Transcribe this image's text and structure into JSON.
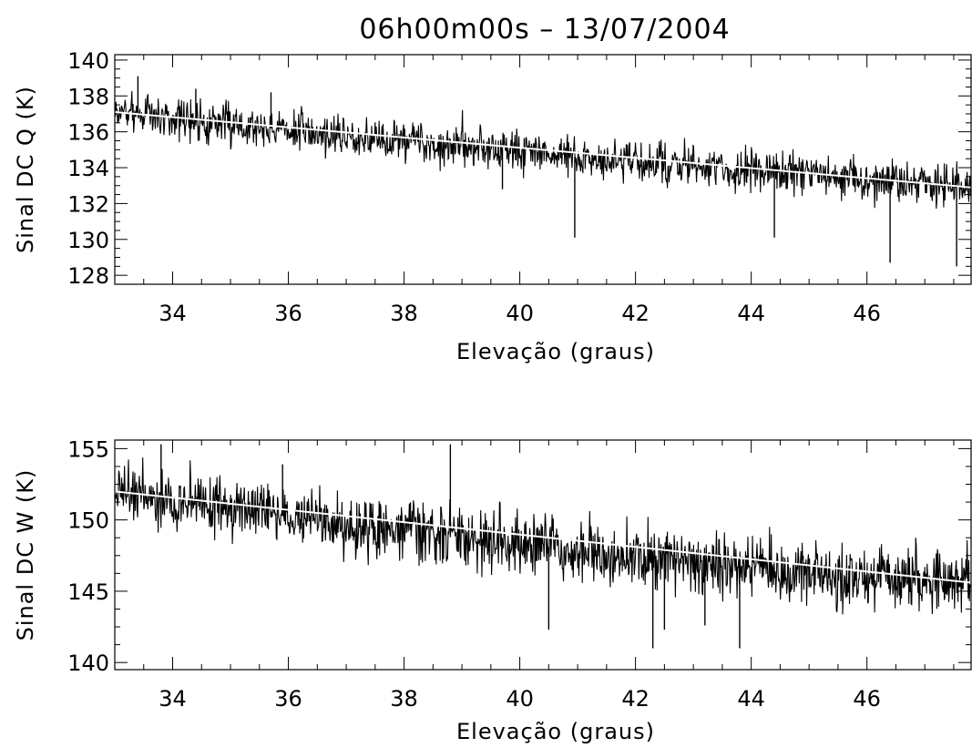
{
  "title": "06h00m00s – 13/07/2004",
  "chart_data": [
    {
      "type": "line",
      "xlabel": "Elevação (graus)",
      "ylabel": "Sinal DC Q (K)",
      "xlim": [
        33.0,
        47.8
      ],
      "ylim": [
        127.5,
        140.3
      ],
      "xticks": [
        34,
        36,
        38,
        40,
        42,
        44,
        46
      ],
      "xtick_labels": [
        "34",
        "36",
        "38",
        "40",
        "42",
        "44",
        "46"
      ],
      "yticks": [
        128,
        130,
        132,
        134,
        136,
        138,
        140
      ],
      "ytick_labels": [
        "128",
        "130",
        "132",
        "134",
        "136",
        "138",
        "140"
      ],
      "grid": false,
      "series": [
        {
          "color": "#000000",
          "style": "noisy signal",
          "x": [
            33.0,
            34.0,
            35.0,
            36.0,
            37.0,
            38.0,
            39.0,
            40.0,
            41.0,
            42.0,
            43.0,
            44.0,
            45.0,
            46.0,
            47.0,
            47.8
          ],
          "y": [
            137.1,
            136.8,
            136.4,
            136.1,
            135.8,
            135.5,
            135.2,
            134.9,
            134.6,
            134.3,
            134.0,
            133.8,
            133.6,
            133.3,
            133.1,
            132.9
          ],
          "spikes": [
            {
              "x": 33.4,
              "y": 139.1
            },
            {
              "x": 34.4,
              "y": 138.4
            },
            {
              "x": 35.7,
              "y": 138.2
            },
            {
              "x": 39.7,
              "y": 132.8
            },
            {
              "x": 40.95,
              "y": 130.1
            },
            {
              "x": 44.4,
              "y": 130.1
            },
            {
              "x": 46.4,
              "y": 128.7
            },
            {
              "x": 47.55,
              "y": 128.5
            }
          ]
        },
        {
          "color": "#ffffff",
          "style": "fit",
          "x": [
            33.0,
            47.8
          ],
          "y": [
            137.1,
            132.9
          ]
        }
      ]
    },
    {
      "type": "line",
      "xlabel": "Elevação (graus)",
      "ylabel": "Sinal DC W (K)",
      "xlim": [
        33.0,
        47.8
      ],
      "ylim": [
        139.5,
        155.6
      ],
      "xticks": [
        34,
        36,
        38,
        40,
        42,
        44,
        46
      ],
      "xtick_labels": [
        "34",
        "36",
        "38",
        "40",
        "42",
        "44",
        "46"
      ],
      "yticks": [
        140,
        145,
        150,
        155
      ],
      "ytick_labels": [
        "140",
        "145",
        "150",
        "155"
      ],
      "grid": false,
      "series": [
        {
          "color": "#000000",
          "style": "noisy signal",
          "x": [
            33.0,
            34.0,
            35.0,
            36.0,
            37.0,
            38.0,
            39.0,
            40.0,
            41.0,
            42.0,
            43.0,
            44.0,
            45.0,
            46.0,
            47.0,
            47.8
          ],
          "y": [
            152.0,
            151.4,
            150.8,
            150.2,
            149.7,
            149.2,
            148.7,
            148.3,
            147.9,
            147.5,
            147.1,
            146.7,
            146.4,
            146.1,
            145.8,
            145.6
          ],
          "spikes": [
            {
              "x": 33.8,
              "y": 155.3
            },
            {
              "x": 35.9,
              "y": 153.9
            },
            {
              "x": 38.8,
              "y": 155.3
            },
            {
              "x": 40.5,
              "y": 142.3
            },
            {
              "x": 42.3,
              "y": 141.0
            },
            {
              "x": 42.5,
              "y": 142.3
            },
            {
              "x": 43.2,
              "y": 142.6
            },
            {
              "x": 43.8,
              "y": 141.0
            }
          ]
        },
        {
          "color": "#ffffff",
          "style": "fit",
          "x": [
            33.0,
            47.8
          ],
          "y": [
            152.0,
            145.6
          ]
        }
      ]
    }
  ]
}
